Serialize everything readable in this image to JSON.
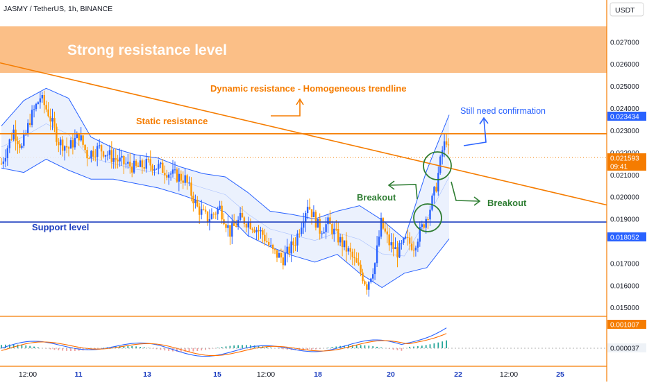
{
  "symbol_title": "JASMY / TetherUS, 1h, BINANCE",
  "currency": "USDT",
  "colors": {
    "up": "#2962ff",
    "down": "#ff9800",
    "band_line": "#2962ff",
    "band_fill": "#e8effd",
    "resistance_zone": "#fbbf87",
    "orange_line": "#f57c00",
    "support_line": "#1e3fbf",
    "breakout_green": "#2e7d32",
    "blue_annotation": "#2962ff",
    "price_badge_blue": "#2962ff",
    "price_badge_orange": "#f57c00"
  },
  "annotations": {
    "zone_label": "Strong resistance level",
    "dynamic_resistance": "Dynamic resistance - Homogeneous trendline",
    "static_resistance": "Static resistance",
    "still_need_confirmation": "Still need confirmation",
    "breakout_left": "Breakout",
    "breakout_right": "Breakout",
    "support_level": "Support level"
  },
  "price_scale": {
    "ticks": [
      "0.027000",
      "0.026000",
      "0.025000",
      "0.024000",
      "0.023000",
      "0.022000",
      "0.021000",
      "0.020000",
      "0.019000",
      "0.017000",
      "0.016000",
      "0.015000"
    ],
    "badges": [
      {
        "value": "0.023434",
        "kind": "blue"
      },
      {
        "value": "0.021593",
        "kind": "orange"
      },
      {
        "value": "09:41",
        "kind": "orange"
      },
      {
        "value": "0.018052",
        "kind": "blue"
      }
    ]
  },
  "indicator_scale": {
    "badges": [
      {
        "value": "0.001007",
        "kind": "orange"
      },
      {
        "value": "0.000037",
        "kind": "light"
      }
    ]
  },
  "time_axis": {
    "labels": [
      "12:00",
      "11",
      "13",
      "15",
      "12:00",
      "18",
      "20",
      "22",
      "12:00",
      "25"
    ]
  },
  "chart_data": {
    "type": "candlestick",
    "ylim": [
      0.0146,
      0.0277
    ],
    "resistance_zone": [
      0.0253,
      0.0275
    ],
    "static_resistance": 0.02285,
    "support": 0.01886,
    "trendline": {
      "from": 0.02605,
      "to": 0.01963
    },
    "bollinger_bands": {
      "upper_anchor_prices": [
        0.0232,
        0.02435,
        0.0249,
        0.02445,
        0.0227,
        0.0222,
        0.0219,
        0.02175,
        0.02135,
        0.02105,
        0.0209,
        0.0202,
        0.01935,
        0.0192,
        0.019,
        0.01935,
        0.0196,
        0.01895,
        0.0181,
        0.0212,
        0.0237
      ],
      "lower_anchor_prices": [
        0.0213,
        0.0211,
        0.0217,
        0.0212,
        0.0208,
        0.0208,
        0.0206,
        0.0204,
        0.0201,
        0.01975,
        0.0193,
        0.01825,
        0.01775,
        0.01735,
        0.01705,
        0.0174,
        0.01655,
        0.0159,
        0.01655,
        0.0168,
        0.0181
      ]
    },
    "candle_count": 220
  }
}
